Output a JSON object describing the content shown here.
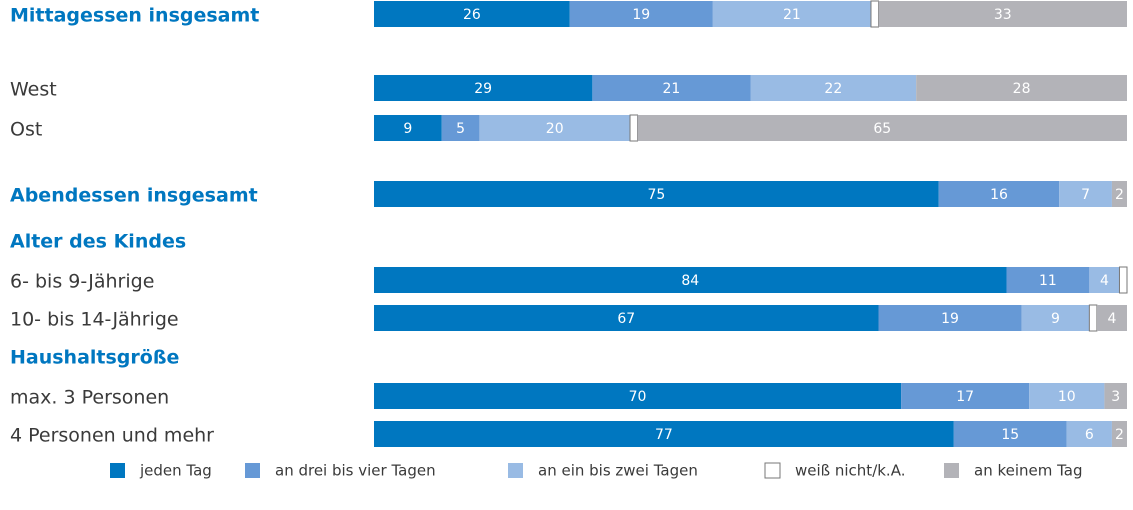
{
  "chart_data": {
    "type": "bar",
    "orientation": "horizontal",
    "stacked": true,
    "categories": [
      "Mittagessen insgesamt",
      "West",
      "Ost",
      "Abendessen insgesamt",
      "Alter des Kindes",
      "6- bis 9-Jährige",
      "10- bis 14-Jährige",
      "Haushaltsgröße",
      "max. 3 Personen",
      "4 Personen und mehr"
    ],
    "series": [
      {
        "name": "jeden Tag",
        "color": "#0077c0",
        "values": [
          26,
          29,
          9,
          75,
          null,
          84,
          67,
          null,
          70,
          77
        ]
      },
      {
        "name": "an drei bis vier Tagen",
        "color": "#6699d6",
        "values": [
          19,
          21,
          5,
          16,
          null,
          11,
          19,
          null,
          17,
          15
        ]
      },
      {
        "name": "an ein bis zwei Tagen",
        "color": "#99bbe4",
        "values": [
          21,
          22,
          20,
          7,
          null,
          4,
          9,
          null,
          10,
          6
        ]
      },
      {
        "name": "weiß nicht/k.A.",
        "color": "#ffffff",
        "values": [
          1,
          0,
          1,
          0,
          null,
          1,
          1,
          null,
          0,
          0
        ]
      },
      {
        "name": "an keinem Tag",
        "color": "#b3b3b8",
        "values": [
          33,
          28,
          65,
          2,
          null,
          0,
          4,
          null,
          3,
          2
        ]
      }
    ],
    "xlim": [
      0,
      100
    ]
  }
}
